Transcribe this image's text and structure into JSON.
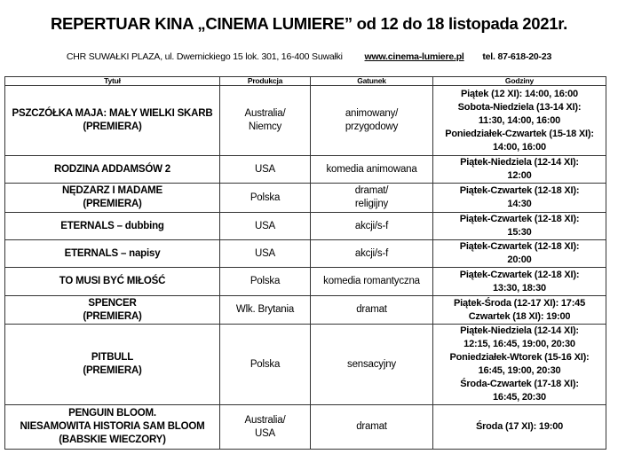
{
  "header": {
    "title": "REPERTUAR KINA „CINEMA LUMIERE” od 12 do 18 listopada 2021r.",
    "address": "CHR SUWAŁKI PLAZA, ul. Dwernickiego 15 lok. 301, 16-400 Suwałki",
    "website": "www.cinema-lumiere.pl",
    "phone": "tel. 87-618-20-23"
  },
  "table": {
    "columns": [
      "Tytuł",
      "Produkcja",
      "Gatunek",
      "Godziny"
    ],
    "rows": [
      {
        "title": [
          "PSZCZÓŁKA MAJA: MAŁY WIELKI SKARB",
          "(PREMIERA)"
        ],
        "production": [
          "Australia/",
          "Niemcy"
        ],
        "genre": [
          "animowany/",
          "przygodowy"
        ],
        "hours": [
          "Piątek (12 XI): 14:00, 16:00",
          "Sobota-Niedziela (13-14 XI):",
          "11:30, 14:00, 16:00",
          "Poniedziałek-Czwartek (15-18 XI):",
          "14:00, 16:00"
        ]
      },
      {
        "title": [
          "RODZINA ADDAMSÓW 2"
        ],
        "production": [
          "USA"
        ],
        "genre": [
          "komedia animowana"
        ],
        "hours": [
          "Piątek-Niedziela (12-14 XI):",
          "12:00"
        ]
      },
      {
        "title": [
          "NĘDZARZ I MADAME",
          "(PREMIERA)"
        ],
        "production": [
          "Polska"
        ],
        "genre": [
          "dramat/",
          "religijny"
        ],
        "hours": [
          "Piątek-Czwartek (12-18 XI):",
          "14:30"
        ]
      },
      {
        "title": [
          "ETERNALS – dubbing"
        ],
        "production": [
          "USA"
        ],
        "genre": [
          "akcji/s-f"
        ],
        "hours": [
          "Piątek-Czwartek (12-18 XI):",
          "15:30"
        ]
      },
      {
        "title": [
          "ETERNALS – napisy"
        ],
        "production": [
          "USA"
        ],
        "genre": [
          "akcji/s-f"
        ],
        "hours": [
          "Piątek-Czwartek (12-18 XI):",
          "20:00"
        ]
      },
      {
        "title": [
          "TO MUSI BYĆ MIŁOŚĆ"
        ],
        "production": [
          "Polska"
        ],
        "genre": [
          "komedia romantyczna"
        ],
        "hours": [
          "Piątek-Czwartek (12-18 XI):",
          "13:30, 18:30"
        ]
      },
      {
        "title": [
          "SPENCER",
          "(PREMIERA)"
        ],
        "production": [
          "Wlk. Brytania"
        ],
        "genre": [
          "dramat"
        ],
        "hours": [
          "Piątek-Środa (12-17 XI): 17:45",
          "Czwartek (18 XI): 19:00"
        ]
      },
      {
        "title": [
          "PITBULL",
          "(PREMIERA)"
        ],
        "production": [
          "Polska"
        ],
        "genre": [
          "sensacyjny"
        ],
        "hours": [
          "Piątek-Niedziela (12-14 XI):",
          "12:15, 16:45, 19:00, 20:30",
          "Poniedziałek-Wtorek (15-16 XI):",
          "16:45, 19:00, 20:30",
          "Środa-Czwartek (17-18 XI):",
          "16:45, 20:30"
        ]
      },
      {
        "title": [
          "PENGUIN BLOOM.",
          "NIESAMOWITA HISTORIA SAM BLOOM",
          "(BABSKIE WIECZORY)"
        ],
        "production": [
          "Australia/",
          "USA"
        ],
        "genre": [
          "dramat"
        ],
        "hours": [
          "Środa (17 XI): 19:00"
        ]
      }
    ]
  }
}
